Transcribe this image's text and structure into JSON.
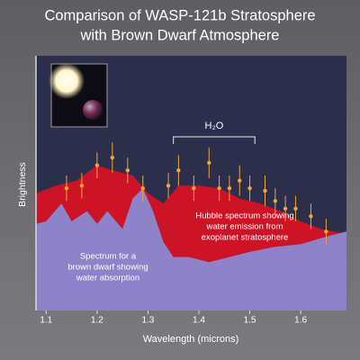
{
  "chart_data": {
    "type": "area",
    "title": [
      "Comparison of WASP-121b Stratosphere",
      "with Brown Dwarf Atmosphere"
    ],
    "x_label": "Wavelength (microns)",
    "y_label": "Brightness",
    "xlim": [
      1.08,
      1.69
    ],
    "ylim": [
      0,
      10
    ],
    "xticks": [
      1.1,
      1.2,
      1.3,
      1.4,
      1.5,
      1.6
    ],
    "series": [
      {
        "color": "#cc1426",
        "x": [
          1.08,
          1.12,
          1.16,
          1.2,
          1.23,
          1.27,
          1.3,
          1.33,
          1.36,
          1.4,
          1.44,
          1.48,
          1.52,
          1.56,
          1.6,
          1.64,
          1.69
        ],
        "values": [
          4.6,
          4.9,
          5.1,
          5.7,
          5.5,
          5.3,
          4.6,
          4.2,
          4.9,
          4.9,
          4.8,
          4.4,
          4.2,
          3.9,
          3.5,
          3.2,
          3.0
        ]
      },
      {
        "color": "#8e82c8",
        "x": [
          1.08,
          1.1,
          1.13,
          1.15,
          1.18,
          1.2,
          1.22,
          1.25,
          1.27,
          1.29,
          1.31,
          1.33,
          1.35,
          1.38,
          1.42,
          1.46,
          1.5,
          1.55,
          1.6,
          1.65,
          1.69
        ],
        "values": [
          3.4,
          3.5,
          4.2,
          3.5,
          3.9,
          3.4,
          3.9,
          3.2,
          4.4,
          4.8,
          3.9,
          2.7,
          2.1,
          2.1,
          1.9,
          2.1,
          2.3,
          2.5,
          2.6,
          2.9,
          3.1
        ]
      }
    ],
    "points": {
      "color": "#f2a33a",
      "x": [
        1.14,
        1.17,
        1.2,
        1.23,
        1.26,
        1.29,
        1.34,
        1.36,
        1.39,
        1.42,
        1.44,
        1.46,
        1.48,
        1.5,
        1.53,
        1.55,
        1.57,
        1.59,
        1.62,
        1.65
      ],
      "values": [
        4.8,
        4.9,
        5.7,
        6.0,
        5.5,
        4.8,
        4.9,
        5.5,
        4.8,
        5.8,
        4.8,
        4.8,
        5.1,
        4.8,
        4.7,
        4.3,
        4.0,
        4.0,
        3.7,
        3.1
      ],
      "errors": [
        0.5,
        0.5,
        0.5,
        0.6,
        0.5,
        0.5,
        0.5,
        0.6,
        0.5,
        0.6,
        0.5,
        0.5,
        0.6,
        0.5,
        0.6,
        0.5,
        0.5,
        0.5,
        0.5,
        0.5
      ]
    },
    "annotations": [
      {
        "text": [
          "H₂O"
        ],
        "span": [
          1.35,
          1.51
        ]
      },
      {
        "text": [
          "Hubble spectrum showing",
          "water emission from",
          "exoplanet stratosphere"
        ]
      },
      {
        "text": [
          "Spectrum for a",
          "brown dwarf showing",
          "water absorption"
        ]
      }
    ]
  }
}
